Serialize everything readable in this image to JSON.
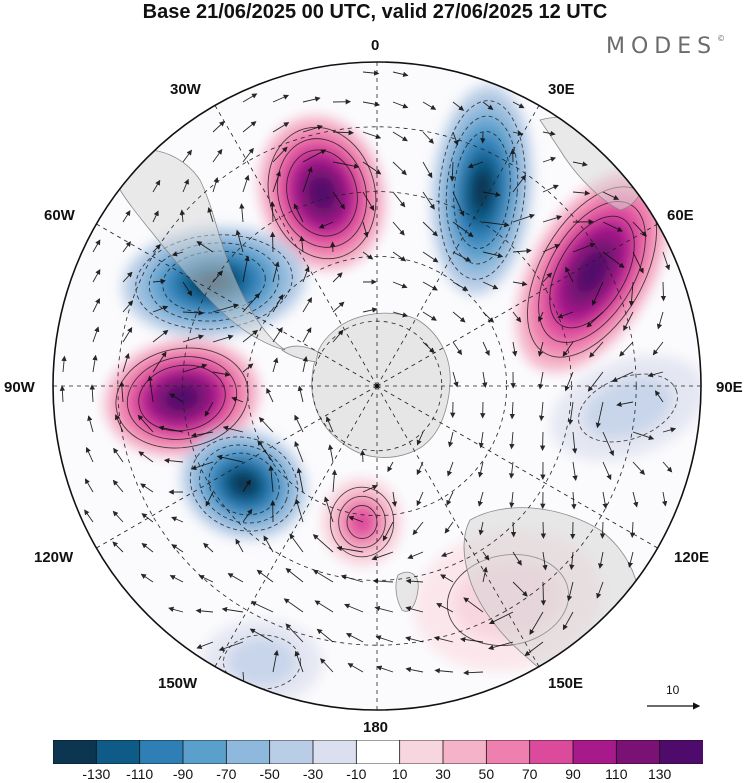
{
  "title": "Base 21/06/2025 00 UTC, valid 27/06/2025 12 UTC",
  "brand": "MODES",
  "brand_mark": "©",
  "longitude_labels": {
    "lon_0": "0",
    "lon_30e": "30E",
    "lon_60e": "60E",
    "lon_90e": "90E",
    "lon_120e": "120E",
    "lon_150e": "150E",
    "lon_180": "180",
    "lon_150w": "150W",
    "lon_120w": "120W",
    "lon_90w": "90W",
    "lon_60w": "60W",
    "lon_30w": "30W"
  },
  "reference_vector": {
    "label": "10"
  },
  "colorbar": {
    "labels": [
      "-130",
      "-110",
      "-90",
      "-70",
      "-50",
      "-30",
      "-10",
      "10",
      "30",
      "50",
      "70",
      "90",
      "110",
      "130"
    ],
    "colors": [
      "#0b3551",
      "#0e5b88",
      "#2f7fb6",
      "#5b9fcc",
      "#8fb9dc",
      "#b9cde6",
      "#dcdff0",
      "#ffffff",
      "#f8d6df",
      "#f4b3c8",
      "#ee7fae",
      "#dc4a9c",
      "#a8198c",
      "#7a1275",
      "#4f0b6b"
    ]
  },
  "anomaly_centers": [
    {
      "sign": "positive",
      "intensity": "strong"
    },
    {
      "sign": "positive",
      "intensity": "strong"
    },
    {
      "sign": "positive",
      "intensity": "strong"
    },
    {
      "sign": "positive",
      "intensity": "moderate"
    },
    {
      "sign": "positive",
      "intensity": "weak"
    },
    {
      "sign": "negative",
      "intensity": "strong"
    },
    {
      "sign": "negative",
      "intensity": "strong"
    },
    {
      "sign": "negative",
      "intensity": "strong"
    },
    {
      "sign": "negative",
      "intensity": "weak"
    },
    {
      "sign": "negative",
      "intensity": "weak"
    }
  ]
}
